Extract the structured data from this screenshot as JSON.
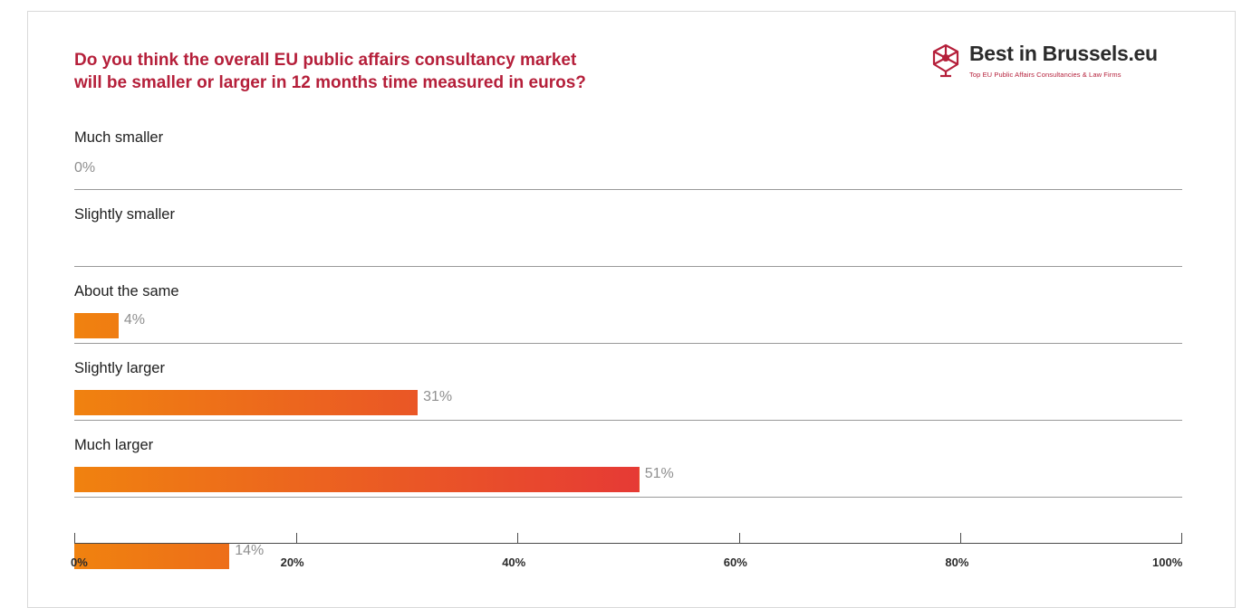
{
  "header": {
    "title_lines": [
      "Do you think the overall EU public affairs consultancy market",
      "will be smaller or larger in 12 months time measured in euros?"
    ]
  },
  "logo": {
    "icon": "network-sphere-icon",
    "name": "Best in Brussels.eu",
    "tagline": "Top EU Public Affairs Consultancies & Law Firms"
  },
  "colors": {
    "title": "#b51f3a",
    "bar_start": "#f0820f",
    "bar_end": "#e63a35",
    "value_text": "#8f8f8f",
    "divider": "#999999"
  },
  "chart_data": {
    "type": "bar",
    "orientation": "horizontal",
    "title": "Do you think the overall EU public affairs consultancy market will be smaller or larger in 12 months time measured in euros?",
    "categories": [
      "Much smaller",
      "Slightly smaller",
      "About the same",
      "Slightly larger",
      "Much larger"
    ],
    "values": [
      0,
      4,
      31,
      51,
      14
    ],
    "value_labels": [
      "0%",
      "4%",
      "31%",
      "51%",
      "14%"
    ],
    "xlim": [
      0,
      100
    ],
    "ticks": [
      0,
      20,
      40,
      60,
      80,
      100
    ],
    "tick_labels": [
      "0%",
      "20%",
      "40%",
      "60%",
      "80%",
      "100%"
    ],
    "grid": false,
    "legend": "none"
  }
}
